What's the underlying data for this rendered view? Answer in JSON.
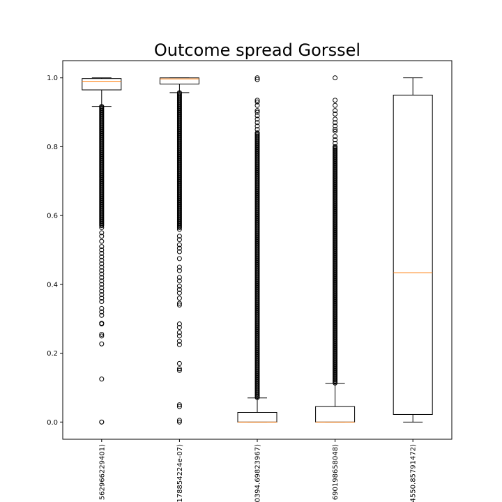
{
  "chart_data": {
    "type": "boxplot",
    "title": "Outcome spread Gorssel",
    "xlabel": "",
    "ylabel": "",
    "ylim": [
      -0.05,
      1.05
    ],
    "yticks": [
      0.0,
      0.2,
      0.4,
      0.6,
      0.8,
      1.0
    ],
    "ytick_labels": [
      "0.0",
      "0.2",
      "0.4",
      "0.6",
      "0.8",
      "1.0"
    ],
    "grid": false,
    "categories": [
      "562966229401)",
      "178854224e-07)",
      "0394.69823967)",
      "690198658048)",
      "4550.85791472)"
    ],
    "boxes": [
      {
        "whisker_low": 0.917,
        "q1": 0.965,
        "median": 0.99,
        "q3": 0.998,
        "whisker_high": 1.0,
        "outliers": [
          0.0,
          0.0,
          0.125,
          0.227,
          0.25,
          0.255,
          0.285,
          0.287,
          0.31,
          0.32,
          0.33,
          0.35,
          0.36,
          0.37,
          0.38,
          0.39,
          0.4,
          0.41,
          0.42,
          0.43,
          0.44,
          0.45,
          0.46,
          0.47,
          0.48,
          0.49,
          0.5,
          0.51,
          0.525,
          0.54,
          0.55,
          0.565
        ],
        "outlier_band": [
          0.57,
          0.917
        ]
      },
      {
        "whisker_low": 0.957,
        "q1": 0.982,
        "median": 0.997,
        "q3": 1.0,
        "whisker_high": 1.0,
        "outliers": [
          0.0,
          0.005,
          0.045,
          0.05,
          0.15,
          0.155,
          0.17,
          0.225,
          0.235,
          0.25,
          0.26,
          0.275,
          0.285,
          0.34,
          0.345,
          0.36,
          0.375,
          0.385,
          0.395,
          0.41,
          0.42,
          0.44,
          0.45,
          0.475,
          0.495,
          0.505,
          0.515,
          0.53,
          0.54,
          0.56
        ],
        "outlier_band": [
          0.565,
          0.957
        ]
      },
      {
        "whisker_low": 0.0,
        "q1": 0.0,
        "median": 0.0,
        "q3": 0.028,
        "whisker_high": 0.07,
        "outliers": [
          0.84,
          0.85,
          0.86,
          0.87,
          0.88,
          0.89,
          0.9,
          0.905,
          0.92,
          0.93,
          0.935,
          0.995,
          1.0
        ],
        "outlier_band": [
          0.07,
          0.84
        ]
      },
      {
        "whisker_low": 0.0,
        "q1": 0.0,
        "median": 0.0,
        "q3": 0.045,
        "whisker_high": 0.112,
        "outliers": [
          0.8,
          0.81,
          0.82,
          0.83,
          0.845,
          0.85,
          0.86,
          0.87,
          0.88,
          0.895,
          0.905,
          0.92,
          0.935,
          1.0
        ],
        "outlier_band": [
          0.112,
          0.8
        ]
      },
      {
        "whisker_low": 0.0,
        "q1": 0.022,
        "median": 0.434,
        "q3": 0.95,
        "whisker_high": 1.0,
        "outliers": [],
        "outlier_band": null
      }
    ],
    "colors": {
      "box": "#000000",
      "median": "#ff7f0e",
      "outlier": "#000000"
    }
  }
}
